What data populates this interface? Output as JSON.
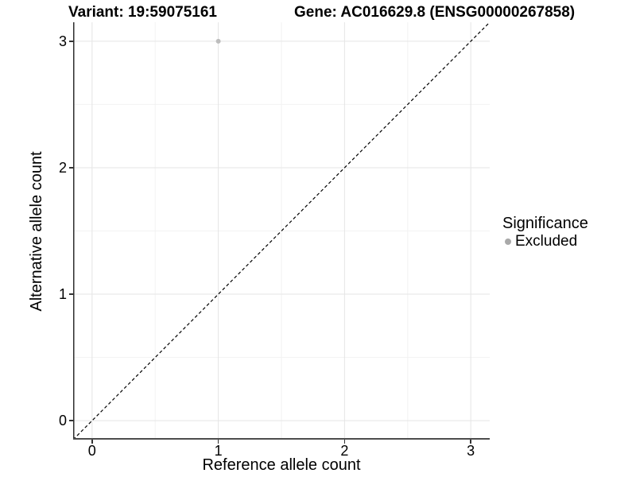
{
  "chart_data": {
    "type": "scatter",
    "titles": {
      "left": "Variant: 19:59075161",
      "right": "Gene: AC016629.8 (ENSG00000267858)"
    },
    "xlabel": "Reference allele count",
    "ylabel": "Alternative allele count",
    "xlim": [
      -0.15,
      3.15
    ],
    "ylim": [
      -0.15,
      3.15
    ],
    "xticks": [
      0,
      1,
      2,
      3
    ],
    "yticks": [
      0,
      1,
      2,
      3
    ],
    "xminor": [
      0.5,
      1.5,
      2.5
    ],
    "yminor": [
      0.5,
      1.5,
      2.5
    ],
    "grid": "major+minor",
    "points": [
      {
        "x": 1,
        "y": 3,
        "series": "Excluded"
      }
    ],
    "reference_line": {
      "slope": 1,
      "intercept": 0,
      "style": "dashed",
      "color": "#000000"
    },
    "legend": {
      "title": "Significance",
      "position": "right",
      "entries": [
        {
          "label": "Excluded",
          "color": "#a9a9a9",
          "marker": "circle"
        }
      ]
    },
    "colors": {
      "point": "#bdbdbd",
      "grid_major": "#e5e5e5",
      "grid_minor": "#f2f2f2",
      "axis_line_left": "#2e2e2e",
      "axis_line_bottom": "#4d4d4d",
      "tick": "#333333",
      "text": "#000000",
      "background": "#ffffff"
    }
  }
}
